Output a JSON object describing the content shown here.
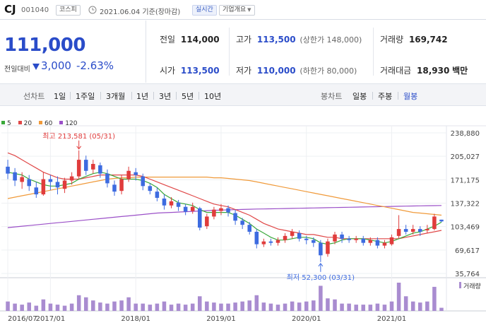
{
  "header": {
    "name": "CJ",
    "code": "001040",
    "market": "코스피",
    "date": "2021.06.04 기준(장마감)",
    "live_label": "실시간",
    "corp_label": "기업개요"
  },
  "price": {
    "current": "111,000",
    "compare_label": "전일대비",
    "change": "3,000",
    "change_pct": "-2.63%"
  },
  "stats": {
    "prev_label": "전일",
    "prev": "114,000",
    "high_label": "고가",
    "high": "113,500",
    "upper_limit": "(상한가 148,000)",
    "volume_label": "거래량",
    "volume": "169,742",
    "open_label": "시가",
    "open": "113,500",
    "low_label": "저가",
    "low": "110,000",
    "lower_limit": "(하한가 80,000)",
    "amount_label": "거래대금",
    "amount": "18,930",
    "amount_unit": "백만"
  },
  "toolbar": {
    "line_label": "선차트",
    "line_options": [
      "1일",
      "1주일",
      "3개월",
      "1년",
      "3년",
      "5년",
      "10년"
    ],
    "candle_label": "봉차트",
    "candle_options": [
      "일봉",
      "주봉",
      "월봉"
    ],
    "candle_selected": 2
  },
  "colors": {
    "up": "#e03c3c",
    "down": "#3d6be0",
    "ma5": "#3aa83a",
    "ma20": "#e04848",
    "ma60": "#f09a3a",
    "ma120": "#9b50c8"
  },
  "chart_data": {
    "type": "candlestick",
    "legend": [
      {
        "label": "5",
        "color": "#3aa83a"
      },
      {
        "label": "20",
        "color": "#e04848"
      },
      {
        "label": "60",
        "color": "#f09a3a"
      },
      {
        "label": "120",
        "color": "#9b50c8"
      }
    ],
    "y_ticks": [
      238880,
      205027,
      171175,
      137322,
      103469,
      69617,
      35764
    ],
    "ylim": [
      35764,
      238880
    ],
    "x_ticks": [
      "2016/07",
      "2017/01",
      "2018/01",
      "2019/01",
      "2020/01",
      "2021/01"
    ],
    "x_tick_index": [
      0,
      6,
      18,
      30,
      42,
      54
    ],
    "annotations": [
      {
        "text": "최고 213,581 (05/31)",
        "index": 10,
        "value": 213581,
        "pos": "above"
      },
      {
        "text": "최저 52,300 (03/31)",
        "index": 44,
        "value": 52300,
        "pos": "below"
      }
    ],
    "volume_label": "거래량",
    "candles": [
      {
        "o": 190000,
        "c": 180000,
        "h": 200000,
        "l": 172000
      },
      {
        "o": 182000,
        "c": 170000,
        "h": 188000,
        "l": 162000
      },
      {
        "o": 168000,
        "c": 175000,
        "h": 182000,
        "l": 158000
      },
      {
        "o": 172000,
        "c": 162000,
        "h": 178000,
        "l": 155000
      },
      {
        "o": 160000,
        "c": 150000,
        "h": 168000,
        "l": 145000
      },
      {
        "o": 150000,
        "c": 172000,
        "h": 182000,
        "l": 148000
      },
      {
        "o": 172000,
        "c": 168000,
        "h": 178000,
        "l": 156000
      },
      {
        "o": 168000,
        "c": 160000,
        "h": 176000,
        "l": 150000
      },
      {
        "o": 158000,
        "c": 170000,
        "h": 174000,
        "l": 152000
      },
      {
        "o": 170000,
        "c": 176000,
        "h": 182000,
        "l": 164000
      },
      {
        "o": 176000,
        "c": 200000,
        "h": 213581,
        "l": 172000
      },
      {
        "o": 200000,
        "c": 184000,
        "h": 206000,
        "l": 178000
      },
      {
        "o": 186000,
        "c": 194000,
        "h": 200000,
        "l": 180000
      },
      {
        "o": 192000,
        "c": 180000,
        "h": 196000,
        "l": 174000
      },
      {
        "o": 180000,
        "c": 166000,
        "h": 186000,
        "l": 160000
      },
      {
        "o": 164000,
        "c": 154000,
        "h": 170000,
        "l": 148000
      },
      {
        "o": 155000,
        "c": 172000,
        "h": 178000,
        "l": 150000
      },
      {
        "o": 172000,
        "c": 184000,
        "h": 190000,
        "l": 168000
      },
      {
        "o": 182000,
        "c": 178000,
        "h": 188000,
        "l": 170000
      },
      {
        "o": 176000,
        "c": 162000,
        "h": 180000,
        "l": 156000
      },
      {
        "o": 162000,
        "c": 155000,
        "h": 166000,
        "l": 150000
      },
      {
        "o": 154000,
        "c": 145000,
        "h": 160000,
        "l": 140000
      },
      {
        "o": 144000,
        "c": 134000,
        "h": 150000,
        "l": 128000
      },
      {
        "o": 134000,
        "c": 140000,
        "h": 146000,
        "l": 130000
      },
      {
        "o": 138000,
        "c": 132000,
        "h": 142000,
        "l": 126000
      },
      {
        "o": 132000,
        "c": 125000,
        "h": 136000,
        "l": 120000
      },
      {
        "o": 126000,
        "c": 132000,
        "h": 138000,
        "l": 122000
      },
      {
        "o": 130000,
        "c": 102000,
        "h": 132000,
        "l": 98000
      },
      {
        "o": 104000,
        "c": 118000,
        "h": 122000,
        "l": 100000
      },
      {
        "o": 118000,
        "c": 128000,
        "h": 132000,
        "l": 114000
      },
      {
        "o": 126000,
        "c": 130000,
        "h": 136000,
        "l": 120000
      },
      {
        "o": 130000,
        "c": 124000,
        "h": 134000,
        "l": 118000
      },
      {
        "o": 123000,
        "c": 112000,
        "h": 128000,
        "l": 106000
      },
      {
        "o": 112000,
        "c": 106000,
        "h": 116000,
        "l": 100000
      },
      {
        "o": 106000,
        "c": 96000,
        "h": 110000,
        "l": 92000
      },
      {
        "o": 96000,
        "c": 78000,
        "h": 100000,
        "l": 72000
      },
      {
        "o": 78000,
        "c": 82000,
        "h": 86000,
        "l": 74000
      },
      {
        "o": 82000,
        "c": 80000,
        "h": 86000,
        "l": 76000
      },
      {
        "o": 80000,
        "c": 84000,
        "h": 88000,
        "l": 76000
      },
      {
        "o": 84000,
        "c": 90000,
        "h": 94000,
        "l": 80000
      },
      {
        "o": 90000,
        "c": 96000,
        "h": 100000,
        "l": 86000
      },
      {
        "o": 94000,
        "c": 86000,
        "h": 98000,
        "l": 82000
      },
      {
        "o": 86000,
        "c": 84000,
        "h": 90000,
        "l": 78000
      },
      {
        "o": 84000,
        "c": 80000,
        "h": 88000,
        "l": 74000
      },
      {
        "o": 80000,
        "c": 62000,
        "h": 84000,
        "l": 52300
      },
      {
        "o": 64000,
        "c": 82000,
        "h": 86000,
        "l": 60000
      },
      {
        "o": 82000,
        "c": 92000,
        "h": 96000,
        "l": 78000
      },
      {
        "o": 92000,
        "c": 86000,
        "h": 96000,
        "l": 80000
      },
      {
        "o": 86000,
        "c": 84000,
        "h": 90000,
        "l": 80000
      },
      {
        "o": 84000,
        "c": 86000,
        "h": 90000,
        "l": 80000
      },
      {
        "o": 86000,
        "c": 80000,
        "h": 90000,
        "l": 76000
      },
      {
        "o": 80000,
        "c": 84000,
        "h": 88000,
        "l": 76000
      },
      {
        "o": 84000,
        "c": 76000,
        "h": 88000,
        "l": 72000
      },
      {
        "o": 76000,
        "c": 80000,
        "h": 84000,
        "l": 72000
      },
      {
        "o": 78000,
        "c": 88000,
        "h": 92000,
        "l": 76000
      },
      {
        "o": 90000,
        "c": 100000,
        "h": 120000,
        "l": 86000
      },
      {
        "o": 100000,
        "c": 96000,
        "h": 106000,
        "l": 92000
      },
      {
        "o": 96000,
        "c": 100000,
        "h": 106000,
        "l": 92000
      },
      {
        "o": 100000,
        "c": 96000,
        "h": 104000,
        "l": 90000
      },
      {
        "o": 98000,
        "c": 100000,
        "h": 106000,
        "l": 94000
      },
      {
        "o": 100000,
        "c": 118000,
        "h": 122000,
        "l": 98000
      },
      {
        "o": 113500,
        "c": 111000,
        "h": 113500,
        "l": 110000
      }
    ],
    "volumes": [
      18,
      14,
      12,
      16,
      10,
      22,
      14,
      12,
      10,
      14,
      30,
      26,
      20,
      16,
      14,
      18,
      20,
      26,
      14,
      14,
      12,
      14,
      18,
      12,
      14,
      12,
      14,
      28,
      18,
      16,
      14,
      14,
      16,
      18,
      20,
      30,
      16,
      14,
      12,
      14,
      18,
      16,
      18,
      20,
      48,
      24,
      22,
      14,
      14,
      12,
      12,
      12,
      14,
      12,
      18,
      54,
      28,
      18,
      16,
      18,
      46,
      6
    ],
    "ma5": [
      182000,
      180000,
      178000,
      172000,
      168000,
      164000,
      162000,
      162000,
      164000,
      166000,
      172000,
      176000,
      180000,
      182000,
      180000,
      176000,
      172000,
      172000,
      172000,
      170000,
      166000,
      160000,
      150000,
      144000,
      138000,
      136000,
      134000,
      128000,
      124000,
      124000,
      124000,
      124000,
      120000,
      114000,
      108000,
      100000,
      94000,
      88000,
      84000,
      84000,
      86000,
      88000,
      88000,
      86000,
      80000,
      78000,
      80000,
      84000,
      86000,
      86000,
      86000,
      84000,
      82000,
      80000,
      82000,
      86000,
      90000,
      94000,
      96000,
      100000,
      104000,
      110000
    ],
    "ma20": [
      210000,
      206000,
      200000,
      194000,
      188000,
      182000,
      178000,
      174000,
      172000,
      172000,
      172000,
      174000,
      176000,
      178000,
      178000,
      178000,
      178000,
      178000,
      178000,
      176000,
      172000,
      168000,
      164000,
      160000,
      156000,
      152000,
      148000,
      144000,
      140000,
      136000,
      134000,
      132000,
      128000,
      124000,
      120000,
      114000,
      108000,
      104000,
      100000,
      98000,
      96000,
      94000,
      92000,
      92000,
      90000,
      88000,
      88000,
      86000,
      86000,
      86000,
      86000,
      86000,
      86000,
      86000,
      86000,
      86000,
      88000,
      90000,
      92000,
      94000,
      96000,
      98000
    ],
    "ma60": [
      144000,
      146000,
      148000,
      150000,
      152000,
      154000,
      156000,
      158000,
      160000,
      162000,
      164000,
      166000,
      168000,
      170000,
      172000,
      173000,
      174000,
      174000,
      175000,
      175000,
      175000,
      175000,
      175000,
      175000,
      175000,
      175000,
      175000,
      175000,
      175000,
      174000,
      174000,
      173000,
      172000,
      171000,
      170000,
      168000,
      166000,
      164000,
      162000,
      160000,
      158000,
      156000,
      154000,
      152000,
      150000,
      148000,
      146000,
      144000,
      142000,
      140000,
      138000,
      136000,
      134000,
      132000,
      130000,
      128000,
      126000,
      124000,
      123000,
      122000,
      121000,
      120000
    ],
    "ma120": [
      102000,
      103000,
      104000,
      105000,
      106000,
      107000,
      108000,
      109000,
      110000,
      111000,
      112000,
      113000,
      114000,
      115000,
      116000,
      117000,
      118000,
      119000,
      120000,
      121000,
      122000,
      123000,
      123500,
      124000,
      124500,
      125000,
      125500,
      126000,
      126500,
      127000,
      127300,
      127600,
      127900,
      128200,
      128500,
      128800,
      129000,
      129200,
      129400,
      129600,
      129800,
      130000,
      130200,
      130400,
      130600,
      130800,
      131000,
      131200,
      131400,
      131600,
      131800,
      132000,
      132200,
      132400,
      132600,
      132800,
      133000,
      133200,
      133400,
      133600,
      133800,
      134000
    ]
  }
}
